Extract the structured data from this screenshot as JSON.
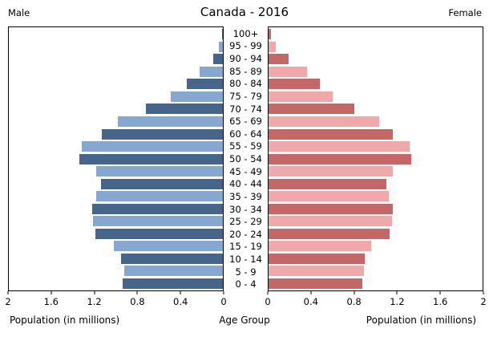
{
  "header": {
    "title": "Canada - 2016",
    "left_label": "Male",
    "right_label": "Female"
  },
  "axes": {
    "left_ticks": [
      "2",
      "1.6",
      "1.2",
      "0.8",
      "0.4",
      "0"
    ],
    "right_ticks": [
      "0",
      "0.4",
      "0.8",
      "1.2",
      "1.6",
      "2"
    ],
    "left_xlabel": "Population (in millions)",
    "center_xlabel": "Age Group",
    "right_xlabel": "Population (in millions)"
  },
  "chart_data": {
    "type": "bar",
    "subtype": "population-pyramid",
    "title": "Canada - 2016",
    "orientation": "horizontal-mirrored",
    "xlim_each_side": [
      0,
      2
    ],
    "x_unit": "millions",
    "grid": false,
    "categories_top_to_bottom": [
      "100+",
      "95 - 99",
      "90 - 94",
      "85 - 89",
      "80 - 84",
      "75 - 79",
      "70 - 74",
      "65 - 69",
      "60 - 64",
      "55 - 59",
      "50 - 54",
      "45 - 49",
      "40 - 44",
      "35 - 39",
      "30 - 34",
      "25 - 29",
      "20 - 24",
      "15 - 19",
      "10 - 14",
      "5 - 9",
      "0 - 4"
    ],
    "series": [
      {
        "name": "Male",
        "side": "left",
        "values_millions": [
          0.01,
          0.04,
          0.09,
          0.22,
          0.34,
          0.49,
          0.72,
          0.98,
          1.13,
          1.32,
          1.34,
          1.18,
          1.14,
          1.18,
          1.22,
          1.21,
          1.19,
          1.02,
          0.95,
          0.92,
          0.94
        ]
      },
      {
        "name": "Female",
        "side": "right",
        "values_millions": [
          0.02,
          0.07,
          0.19,
          0.36,
          0.48,
          0.6,
          0.8,
          1.03,
          1.16,
          1.32,
          1.33,
          1.16,
          1.1,
          1.12,
          1.16,
          1.15,
          1.13,
          0.96,
          0.9,
          0.89,
          0.88
        ]
      }
    ],
    "colors": {
      "male_dark": "#46658a",
      "male_light": "#85a7d0",
      "female_dark": "#c56667",
      "female_light": "#f0a8aa",
      "alternation": "dark on even rows from top (100+ = dark)"
    }
  }
}
